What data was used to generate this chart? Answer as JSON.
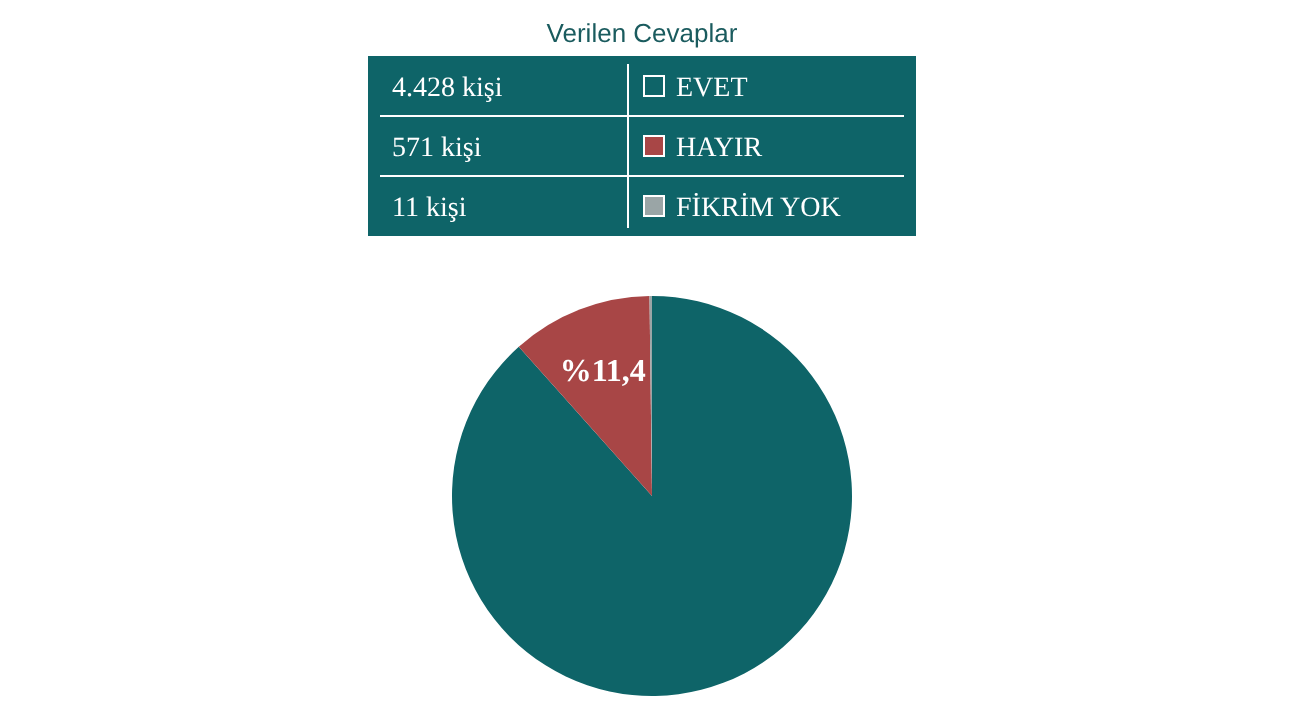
{
  "chart_data": {
    "type": "pie",
    "title": "Verilen Cevaplar",
    "categories": [
      "EVET",
      "HAYIR",
      "FİKRİM YOK"
    ],
    "values": [
      88.4,
      11.4,
      0.2
    ],
    "colors": [
      "#0e6468",
      "#a84646",
      "#9aa5a6"
    ],
    "annotations": [
      "4.428 kişi",
      "571 kişi",
      "11 kişi",
      {
        "text": "%11,4",
        "x": "HAYIR"
      }
    ],
    "legend": "top"
  }
}
